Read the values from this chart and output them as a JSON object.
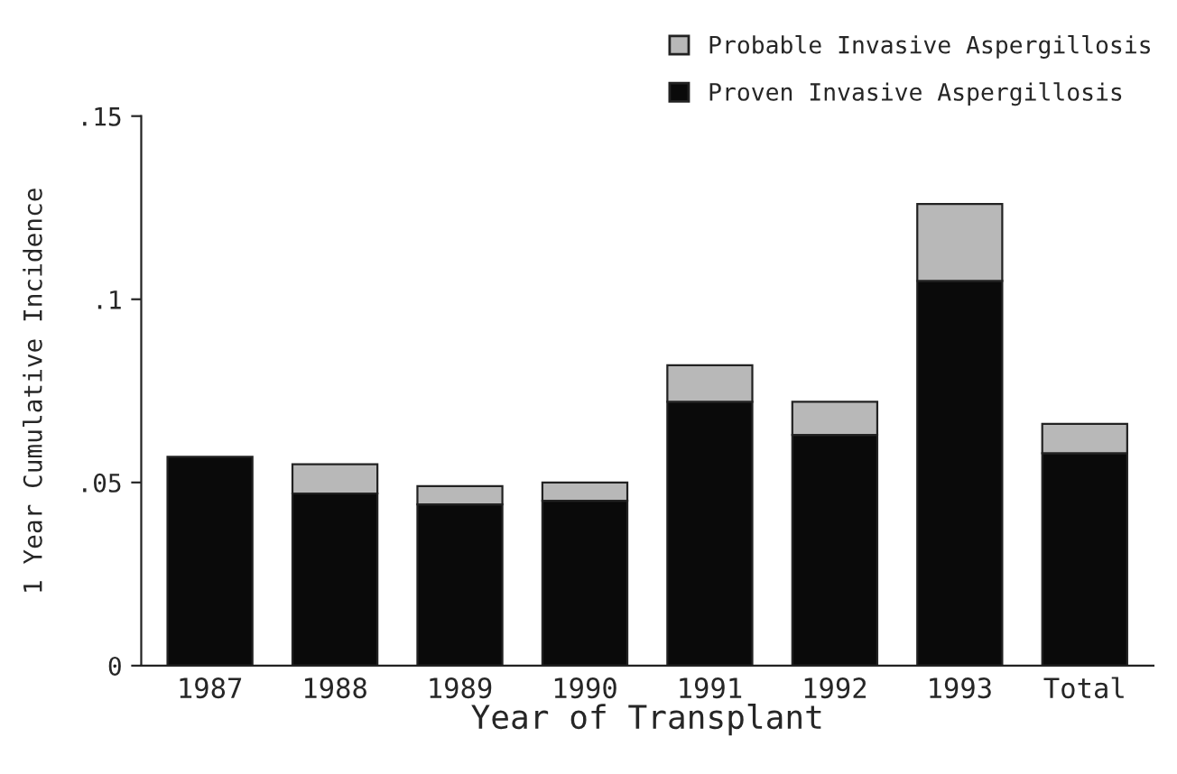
{
  "chart_data": {
    "type": "bar",
    "stacked": true,
    "xlabel": "Year of Transplant",
    "ylabel": "1 Year Cumulative Incidence",
    "categories": [
      "1987",
      "1988",
      "1989",
      "1990",
      "1991",
      "1992",
      "1993",
      "Total"
    ],
    "series": [
      {
        "name": "Proven Invasive Aspergillosis",
        "color": "#0a0a0a",
        "values": [
          0.057,
          0.047,
          0.044,
          0.045,
          0.072,
          0.063,
          0.105,
          0.058
        ]
      },
      {
        "name": "Probable Invasive Aspergillosis",
        "color": "#b8b8b8",
        "values": [
          null,
          0.008,
          0.005,
          0.005,
          0.01,
          0.009,
          0.021,
          0.008
        ]
      }
    ],
    "ylim": [
      0,
      0.15
    ],
    "yticks": [
      {
        "value": 0,
        "label": "0"
      },
      {
        "value": 0.05,
        "label": ".05"
      },
      {
        "value": 0.1,
        "label": ".1"
      },
      {
        "value": 0.15,
        "label": ".15"
      }
    ],
    "legend": "top right",
    "grid": false
  }
}
